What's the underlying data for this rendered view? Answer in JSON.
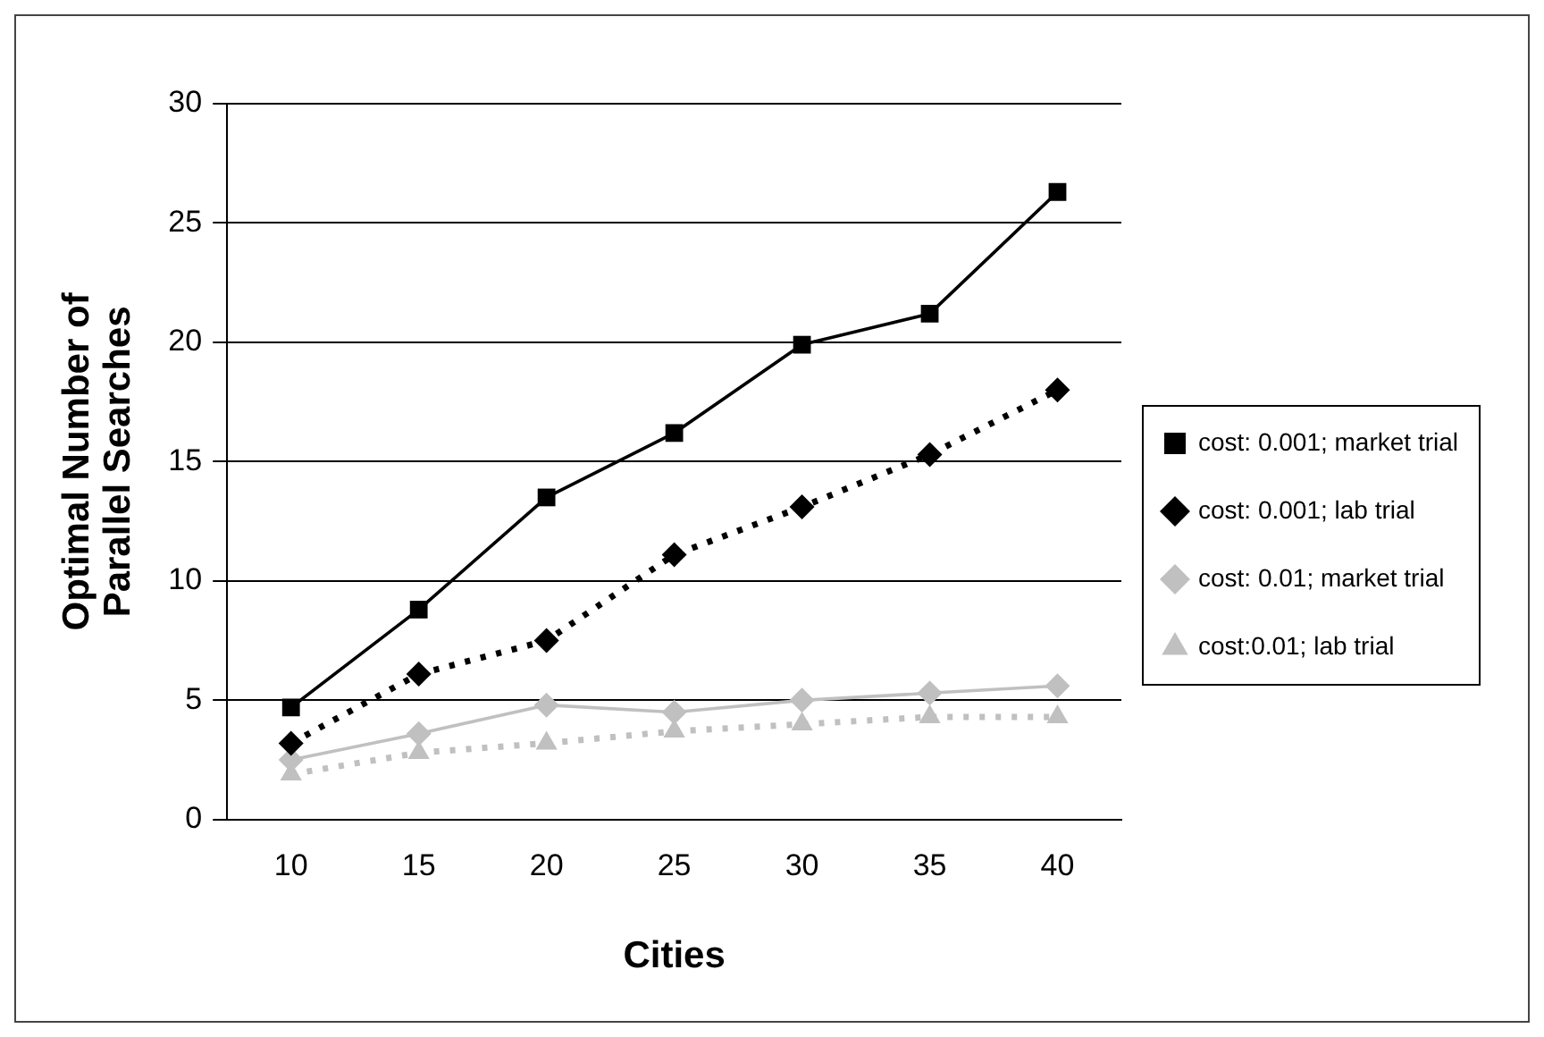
{
  "chart_data": {
    "type": "line",
    "xlabel": "Cities",
    "ylabel": "Optimal Number of Parallel Searches",
    "categories": [
      "10",
      "15",
      "20",
      "25",
      "30",
      "35",
      "40"
    ],
    "series": [
      {
        "name": "cost: 0.001; market trial",
        "color": "#000000",
        "marker": "square",
        "line_style": "solid",
        "values": [
          4.7,
          8.8,
          13.5,
          16.2,
          19.9,
          21.2,
          26.3
        ]
      },
      {
        "name": "cost: 0.001; lab trial",
        "color": "#000000",
        "marker": "diamond",
        "line_style": "dotted",
        "values": [
          3.2,
          6.1,
          7.5,
          11.1,
          13.1,
          15.3,
          18.0
        ]
      },
      {
        "name": "cost: 0.01; market trial",
        "color": "#c0c0c0",
        "marker": "diamond",
        "line_style": "solid",
        "values": [
          2.5,
          3.6,
          4.8,
          4.5,
          5.0,
          5.3,
          5.6
        ]
      },
      {
        "name": "cost:0.01; lab trial",
        "color": "#c0c0c0",
        "marker": "triangle",
        "line_style": "dotted",
        "values": [
          1.9,
          2.8,
          3.2,
          3.7,
          4.0,
          4.3,
          4.3
        ]
      }
    ],
    "ylim": [
      0,
      30
    ],
    "yticks": [
      0,
      5,
      10,
      15,
      20,
      25,
      30
    ],
    "grid": "y",
    "legend": "right"
  }
}
